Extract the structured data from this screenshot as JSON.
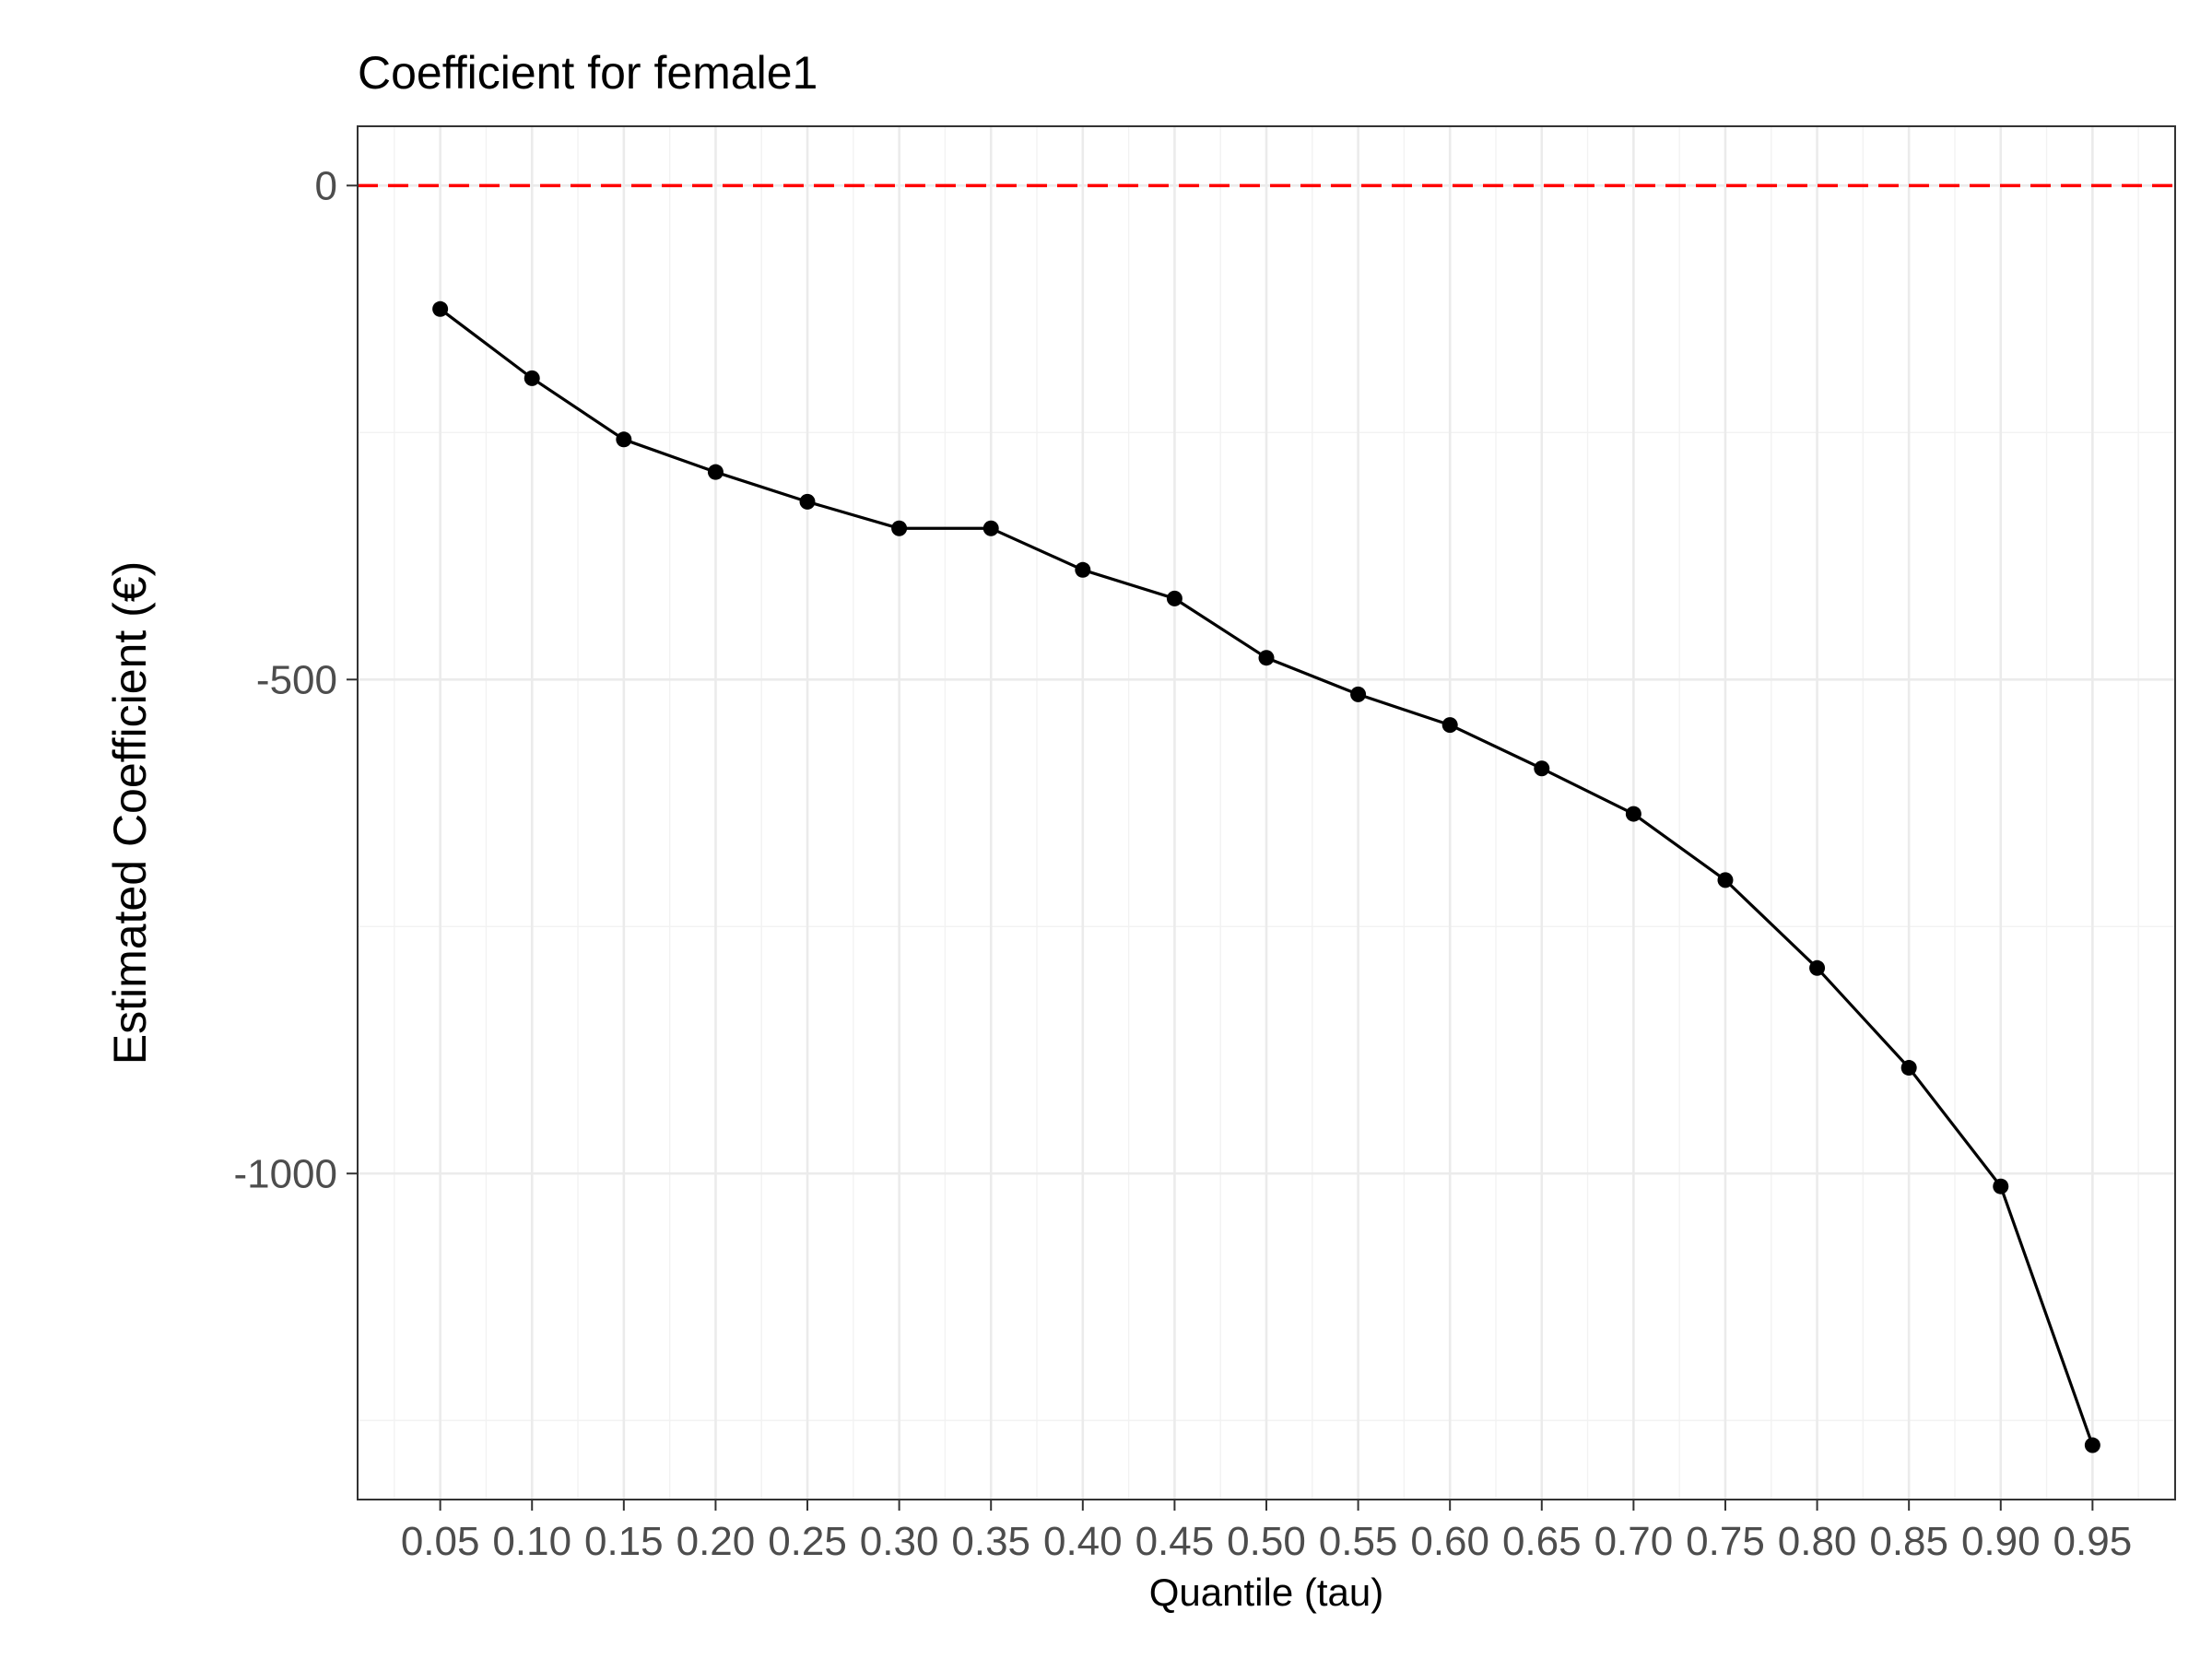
{
  "chart_data": {
    "type": "line",
    "title": "Coefficient for female1",
    "xlabel": "Quantile (tau)",
    "ylabel": "Estimated Coefficient (€)",
    "x": [
      0.05,
      0.1,
      0.15,
      0.2,
      0.25,
      0.3,
      0.35,
      0.4,
      0.45,
      0.5,
      0.55,
      0.6,
      0.65,
      0.7,
      0.75,
      0.8,
      0.85,
      0.9,
      0.95
    ],
    "x_tick_labels": [
      "0.05",
      "0.10",
      "0.15",
      "0.20",
      "0.25",
      "0.30",
      "0.35",
      "0.40",
      "0.45",
      "0.50",
      "0.55",
      "0.60",
      "0.65",
      "0.70",
      "0.75",
      "0.80",
      "0.85",
      "0.90",
      "0.95"
    ],
    "series": [
      {
        "values": [
          -125,
          -195,
          -257,
          -290,
          -320,
          -347,
          -347,
          -389,
          -418,
          -478,
          -515,
          -546,
          -590,
          -636,
          -703,
          -792,
          -893,
          -1013,
          -1275
        ],
        "color": "#000000"
      }
    ],
    "y_ticks": [
      0,
      -500,
      -1000
    ],
    "y_tick_labels": [
      "0",
      "-500",
      "-1000"
    ],
    "xlim": [
      0.005,
      0.995
    ],
    "ylim": [
      -1330,
      60
    ],
    "reference_line": {
      "y": 0,
      "color": "#ff0000",
      "style": "dashed"
    },
    "grid": true,
    "legend": "none"
  }
}
